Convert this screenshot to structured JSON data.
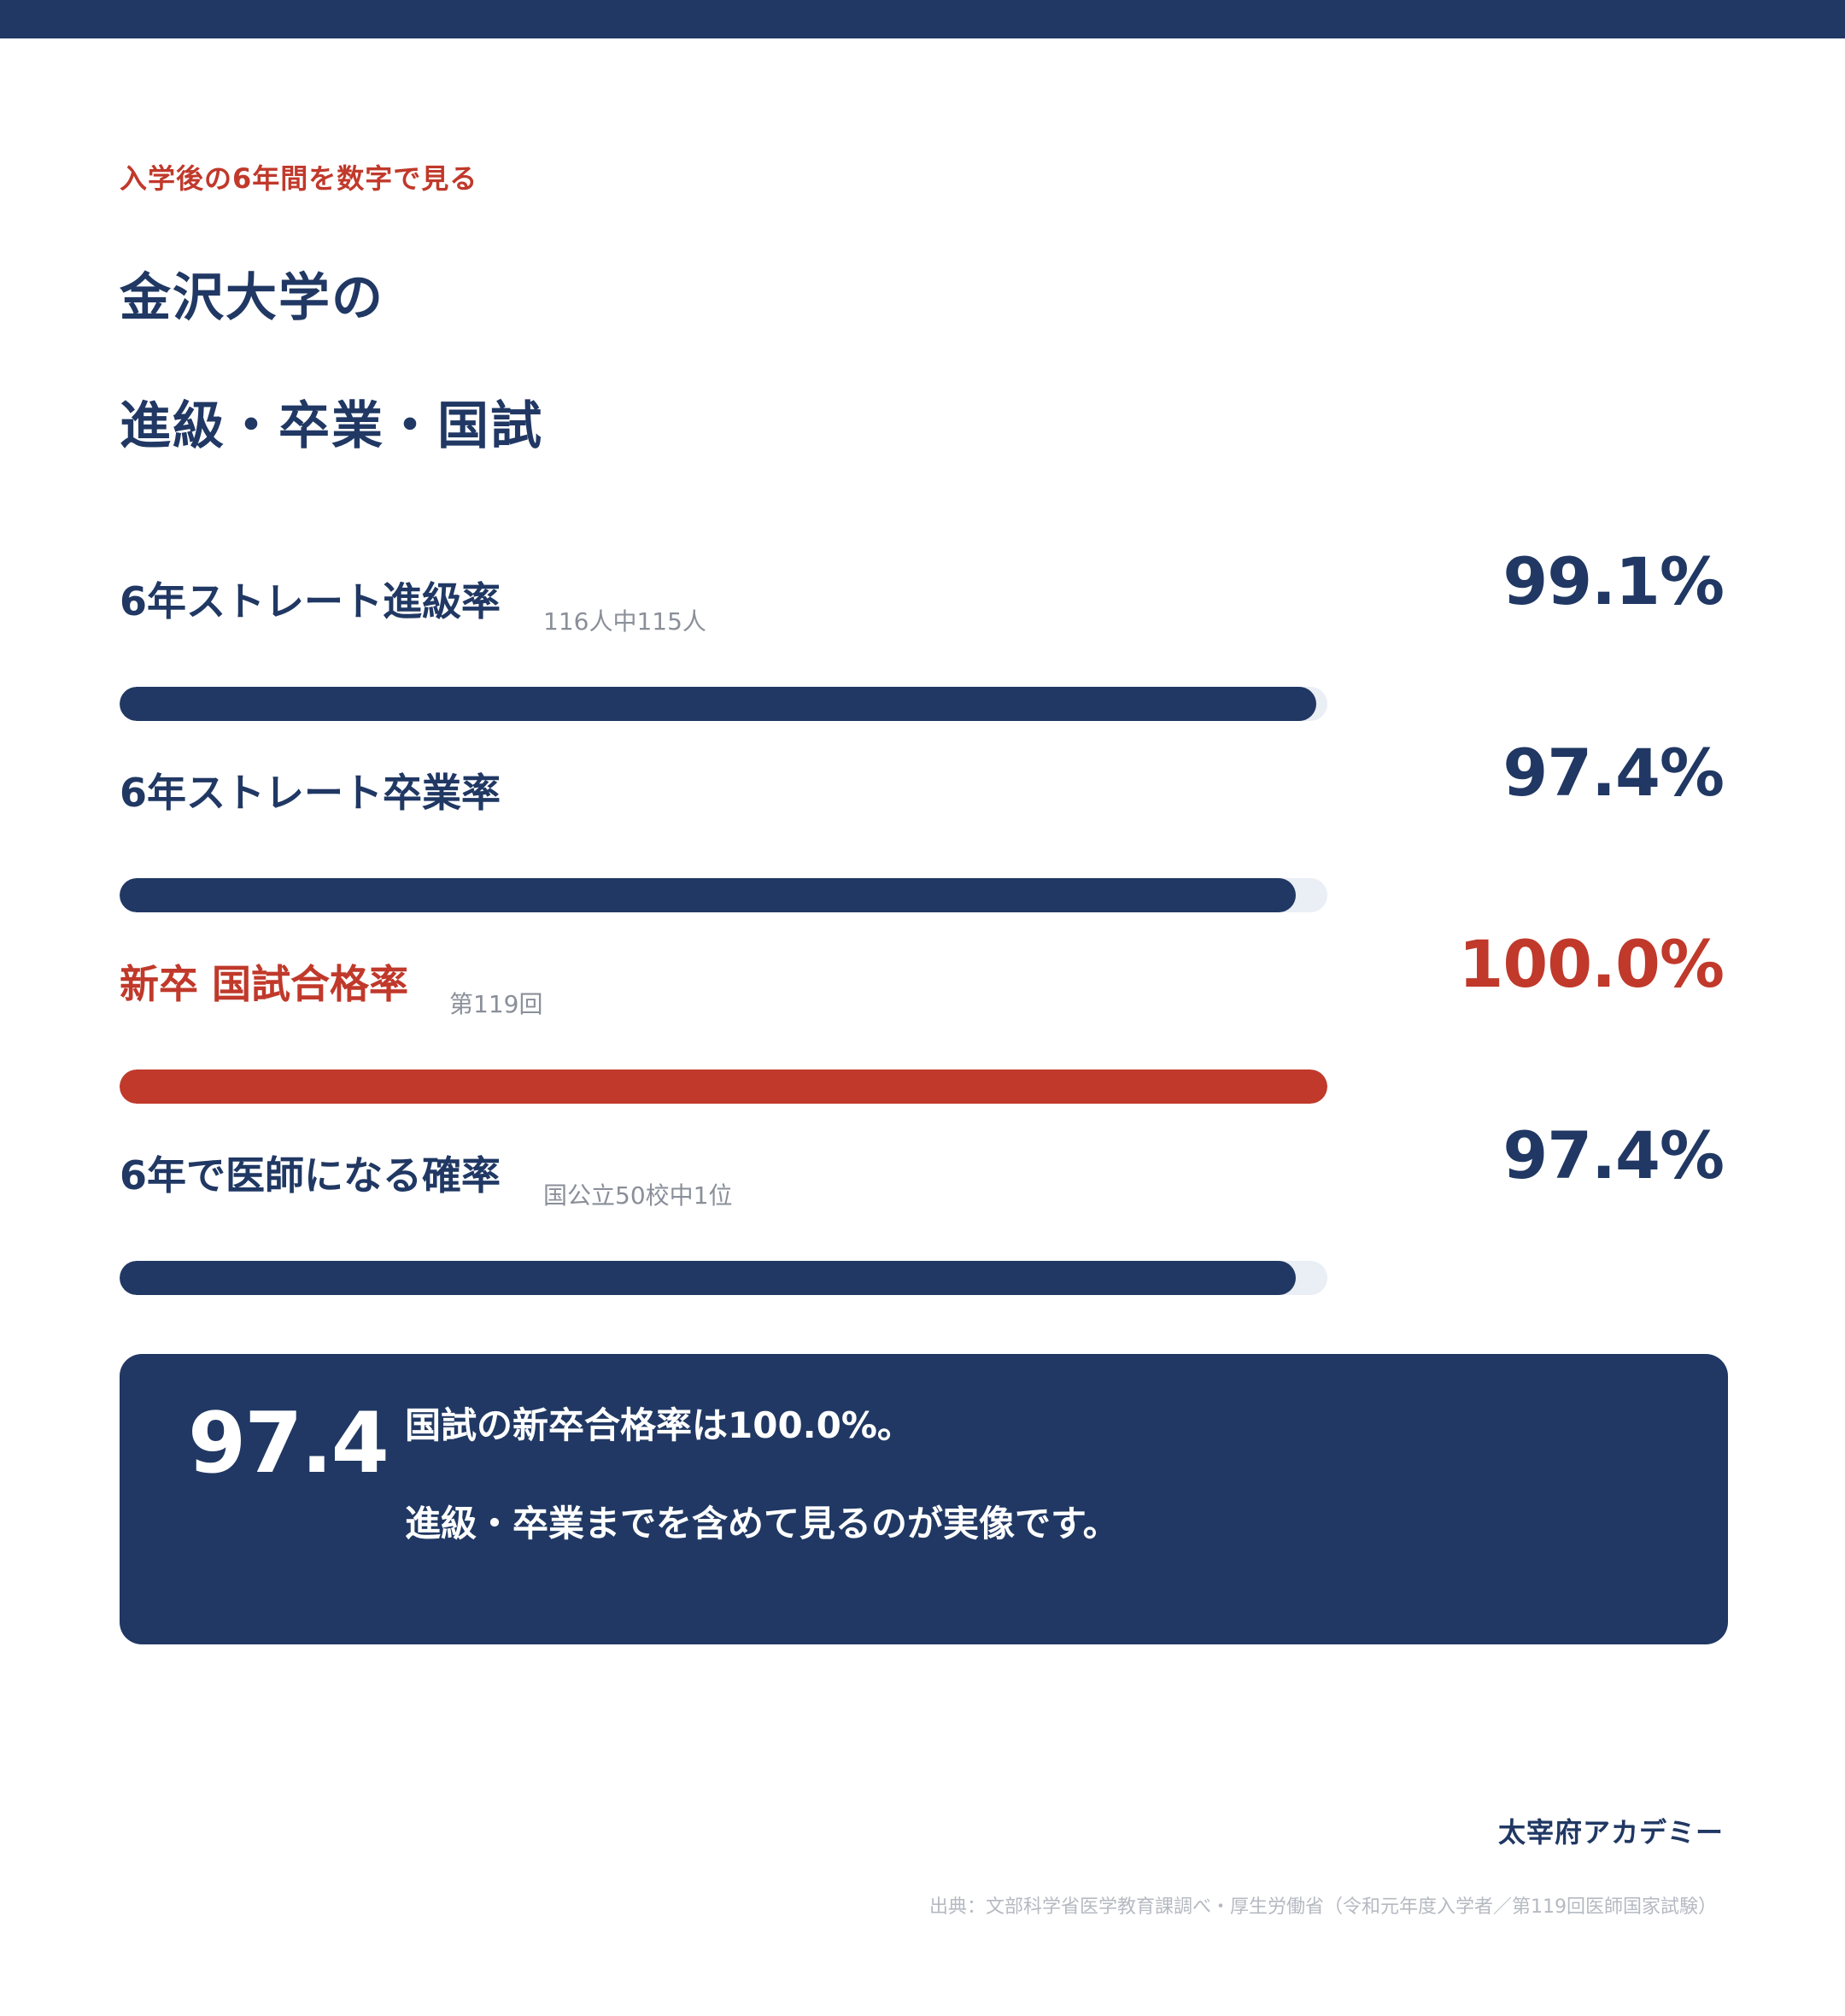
{
  "kicker": "入学後の6年間を数字で見る",
  "title": {
    "line1": "金沢大学の",
    "line2": "進級・卒業・国試"
  },
  "colors": {
    "navy": "#203863",
    "red": "#c0392b",
    "track": "#eaeef5"
  },
  "chart_data": {
    "type": "bar",
    "orientation": "horizontal",
    "ylim": [
      0,
      100
    ],
    "categories": [
      "6年ストレート進級率",
      "6年ストレート卒業率",
      "新卒 国試合格率",
      "6年で医師になる確率"
    ],
    "values": [
      99.1,
      97.4,
      100.0,
      97.4
    ],
    "metrics": [
      {
        "label": "6年ストレート進級率",
        "note": "116人中115人",
        "value": 99.1,
        "display": "99.1%",
        "accent": "navy"
      },
      {
        "label": "6年ストレート卒業率",
        "note": "",
        "value": 97.4,
        "display": "97.4%",
        "accent": "navy"
      },
      {
        "label": "新卒 国試合格率",
        "note": "第119回",
        "value": 100.0,
        "display": "100.0%",
        "accent": "red"
      },
      {
        "label": "6年で医師になる確率",
        "note": "国公立50校中1位",
        "value": 97.4,
        "display": "97.4%",
        "accent": "navy"
      }
    ]
  },
  "callout": {
    "number": "97.4",
    "line1": "国試の新卒合格率は100.0%。",
    "line2": "進級・卒業までを含めて見るのが実像です。"
  },
  "brand": "太宰府アカデミー",
  "source": "出典：文部科学省医学教育課調べ・厚生労働省（令和元年度入学者／第119回医師国家試験）"
}
